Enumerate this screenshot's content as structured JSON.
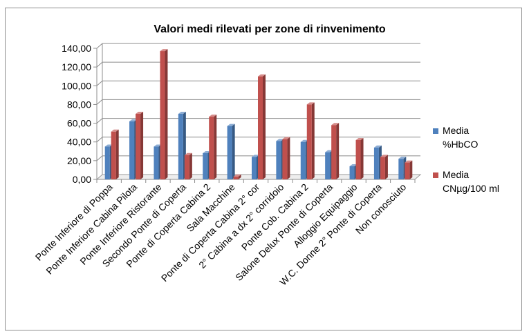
{
  "chart_data": {
    "type": "bar",
    "title": "Valori medi rilevati per zone di rinvenimento",
    "xlabel": "",
    "ylabel": "",
    "ylim": [
      0,
      140
    ],
    "yticks": [
      "0,00",
      "20,00",
      "40,00",
      "60,00",
      "80,00",
      "100,00",
      "120,00",
      "140,00"
    ],
    "grid": true,
    "legend_position": "right",
    "categories": [
      "Ponte Inferiore di Poppa",
      "Ponte Inferiore Cabina Pilota",
      "Ponte Inferiore Ristorante",
      "Secondo Ponte di Coperta",
      "Ponte di Coperta Cabina 2",
      "Sala Macchine",
      "Ponte di Coperta Cabina 2° cor",
      "2° Cabina a dx 2° corridoio",
      "Ponte Cob. Cabina 2",
      "Salone Delux Ponte di Coperta",
      "Alloggio Equipaggio",
      "W.C. Donne 2° Ponte di Coperta",
      "Non conosciuto"
    ],
    "series": [
      {
        "name": "Media %HbCO",
        "legend_lines": [
          "Media",
          "%HbCO"
        ],
        "color": "#4F81BD",
        "values": [
          35,
          62,
          35,
          70,
          28,
          57,
          24,
          41,
          40,
          29,
          14,
          34,
          22
        ]
      },
      {
        "name": "Media CNµg/100 ml",
        "legend_lines": [
          "Media",
          "CNµg/100 ml"
        ],
        "color": "#C0504D",
        "values": [
          51,
          70,
          137,
          26,
          67,
          3,
          110,
          43,
          80,
          58,
          42,
          24,
          18
        ]
      }
    ]
  }
}
